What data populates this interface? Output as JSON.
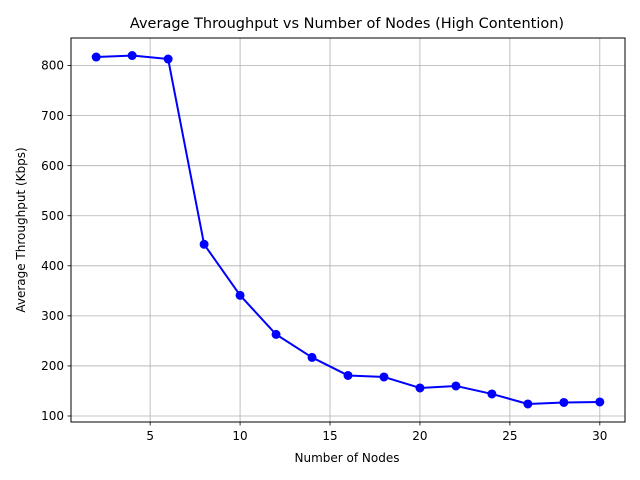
{
  "chart_data": {
    "type": "line",
    "title": "Average Throughput vs Number of Nodes (High Contention)",
    "xlabel": "Number of Nodes",
    "ylabel": "Average Throughput (Kbps)",
    "xlim": [
      0.6,
      31.4
    ],
    "ylim": [
      88,
      855
    ],
    "xticks": [
      5,
      10,
      15,
      20,
      25,
      30
    ],
    "yticks": [
      100,
      200,
      300,
      400,
      500,
      600,
      700,
      800
    ],
    "grid": true,
    "legend": "none",
    "marker": "circle",
    "color": "#0000ff",
    "series": [
      {
        "x": [
          2,
          4,
          6,
          8,
          10,
          12,
          14,
          16,
          18,
          20,
          22,
          24,
          26,
          28,
          30
        ],
        "values": [
          817,
          820,
          813,
          443,
          341,
          263,
          217,
          181,
          178,
          156,
          160,
          144,
          124,
          127,
          128
        ]
      }
    ]
  }
}
